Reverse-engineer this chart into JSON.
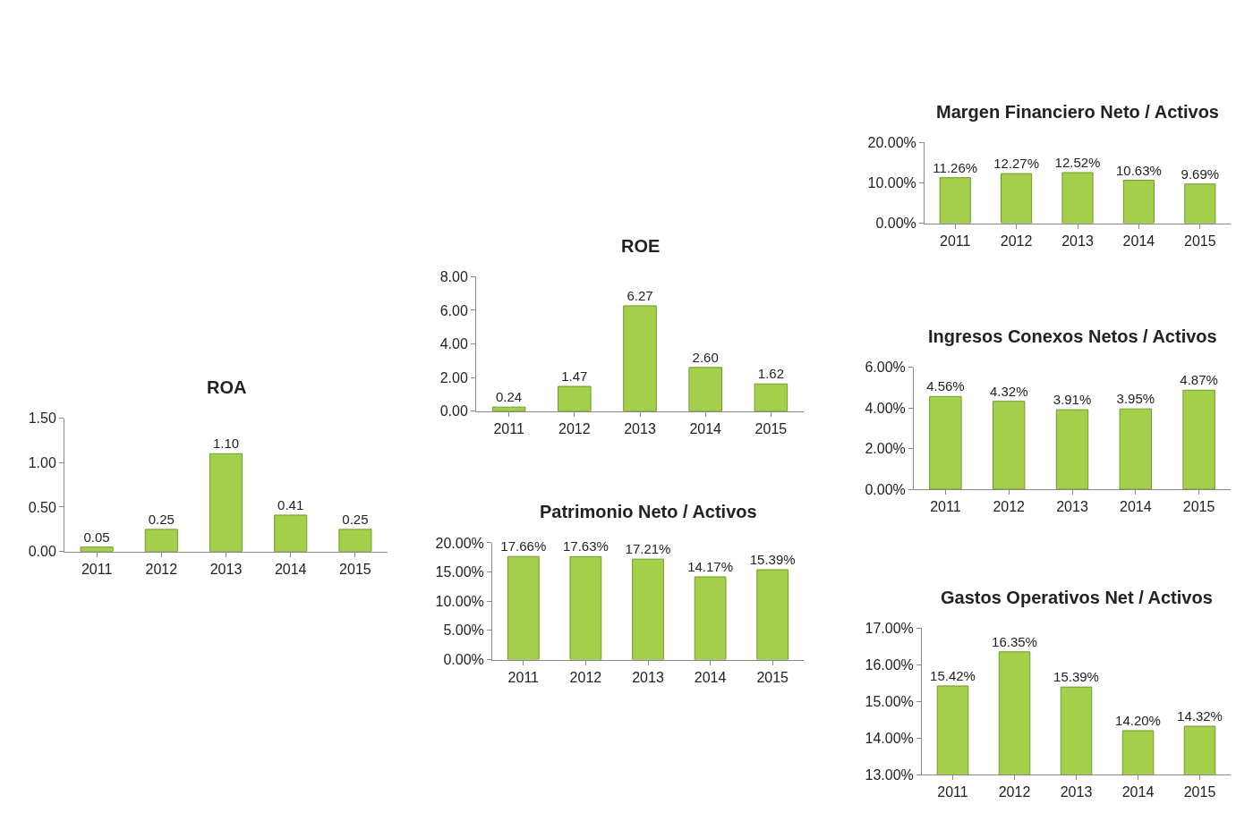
{
  "chart_data": [
    {
      "type": "bar",
      "title": "ROA",
      "categories": [
        "2011",
        "2012",
        "2013",
        "2014",
        "2015"
      ],
      "values": [
        0.05,
        0.25,
        1.1,
        0.41,
        0.25
      ],
      "value_labels": [
        "0.05",
        "0.25",
        "1.10",
        "0.41",
        "0.25"
      ],
      "color": "#a4cf4a",
      "ylim": [
        0,
        1.5
      ],
      "yticks": [
        {
          "value": 0,
          "label": "0.00"
        },
        {
          "value": 0.5,
          "label": "0.50"
        },
        {
          "value": 1,
          "label": "1.00"
        },
        {
          "value": 1.5,
          "label": "1.50"
        }
      ]
    },
    {
      "type": "bar",
      "title": "ROE",
      "categories": [
        "2011",
        "2012",
        "2013",
        "2014",
        "2015"
      ],
      "values": [
        0.24,
        1.47,
        6.27,
        2.6,
        1.62
      ],
      "value_labels": [
        "0.24",
        "1.47",
        "6.27",
        "2.60",
        "1.62"
      ],
      "color": "#a4cf4a",
      "ylim": [
        0,
        8
      ],
      "yticks": [
        {
          "value": 0,
          "label": "0.00"
        },
        {
          "value": 2,
          "label": "2.00"
        },
        {
          "value": 4,
          "label": "4.00"
        },
        {
          "value": 6,
          "label": "6.00"
        },
        {
          "value": 8,
          "label": "8.00"
        }
      ]
    },
    {
      "type": "bar",
      "title": "Patrimonio Neto / Activos",
      "categories": [
        "2011",
        "2012",
        "2013",
        "2014",
        "2015"
      ],
      "values": [
        17.66,
        17.63,
        17.21,
        14.17,
        15.39
      ],
      "value_labels": [
        "17.66%",
        "17.63%",
        "17.21%",
        "14.17%",
        "15.39%"
      ],
      "color": "#a4cf4a",
      "ylim": [
        0,
        20
      ],
      "yticks": [
        {
          "value": 0,
          "label": "0.00%"
        },
        {
          "value": 5,
          "label": "5.00%"
        },
        {
          "value": 10,
          "label": "10.00%"
        },
        {
          "value": 15,
          "label": "15.00%"
        },
        {
          "value": 20,
          "label": "20.00%"
        }
      ]
    },
    {
      "type": "bar",
      "title": "Margen Financiero Neto / Activos",
      "categories": [
        "2011",
        "2012",
        "2013",
        "2014",
        "2015"
      ],
      "values": [
        11.26,
        12.27,
        12.52,
        10.63,
        9.69
      ],
      "value_labels": [
        "11.26%",
        "12.27%",
        "12.52%",
        "10.63%",
        "9.69%"
      ],
      "color": "#a4cf4a",
      "ylim": [
        0,
        20
      ],
      "yticks": [
        {
          "value": 0,
          "label": "0.00%"
        },
        {
          "value": 10,
          "label": "10.00%"
        },
        {
          "value": 20,
          "label": "20.00%"
        }
      ]
    },
    {
      "type": "bar",
      "title": "Ingresos Conexos Netos / Activos",
      "categories": [
        "2011",
        "2012",
        "2013",
        "2014",
        "2015"
      ],
      "values": [
        4.56,
        4.32,
        3.91,
        3.95,
        4.87
      ],
      "value_labels": [
        "4.56%",
        "4.32%",
        "3.91%",
        "3.95%",
        "4.87%"
      ],
      "color": "#a4cf4a",
      "ylim": [
        0,
        6
      ],
      "yticks": [
        {
          "value": 0,
          "label": "0.00%"
        },
        {
          "value": 2,
          "label": "2.00%"
        },
        {
          "value": 4,
          "label": "4.00%"
        },
        {
          "value": 6,
          "label": "6.00%"
        }
      ]
    },
    {
      "type": "bar",
      "title": "Gastos Operativos Net / Activos",
      "categories": [
        "2011",
        "2012",
        "2013",
        "2014",
        "2015"
      ],
      "values": [
        15.42,
        16.35,
        15.39,
        14.2,
        14.32
      ],
      "value_labels": [
        "15.42%",
        "16.35%",
        "15.39%",
        "14.20%",
        "14.32%"
      ],
      "color": "#a4cf4a",
      "ylim": [
        13,
        17
      ],
      "yticks": [
        {
          "value": 13,
          "label": "13.00%"
        },
        {
          "value": 14,
          "label": "14.00%"
        },
        {
          "value": 15,
          "label": "15.00%"
        },
        {
          "value": 16,
          "label": "16.00%"
        },
        {
          "value": 17,
          "label": "17.00%"
        }
      ]
    }
  ]
}
